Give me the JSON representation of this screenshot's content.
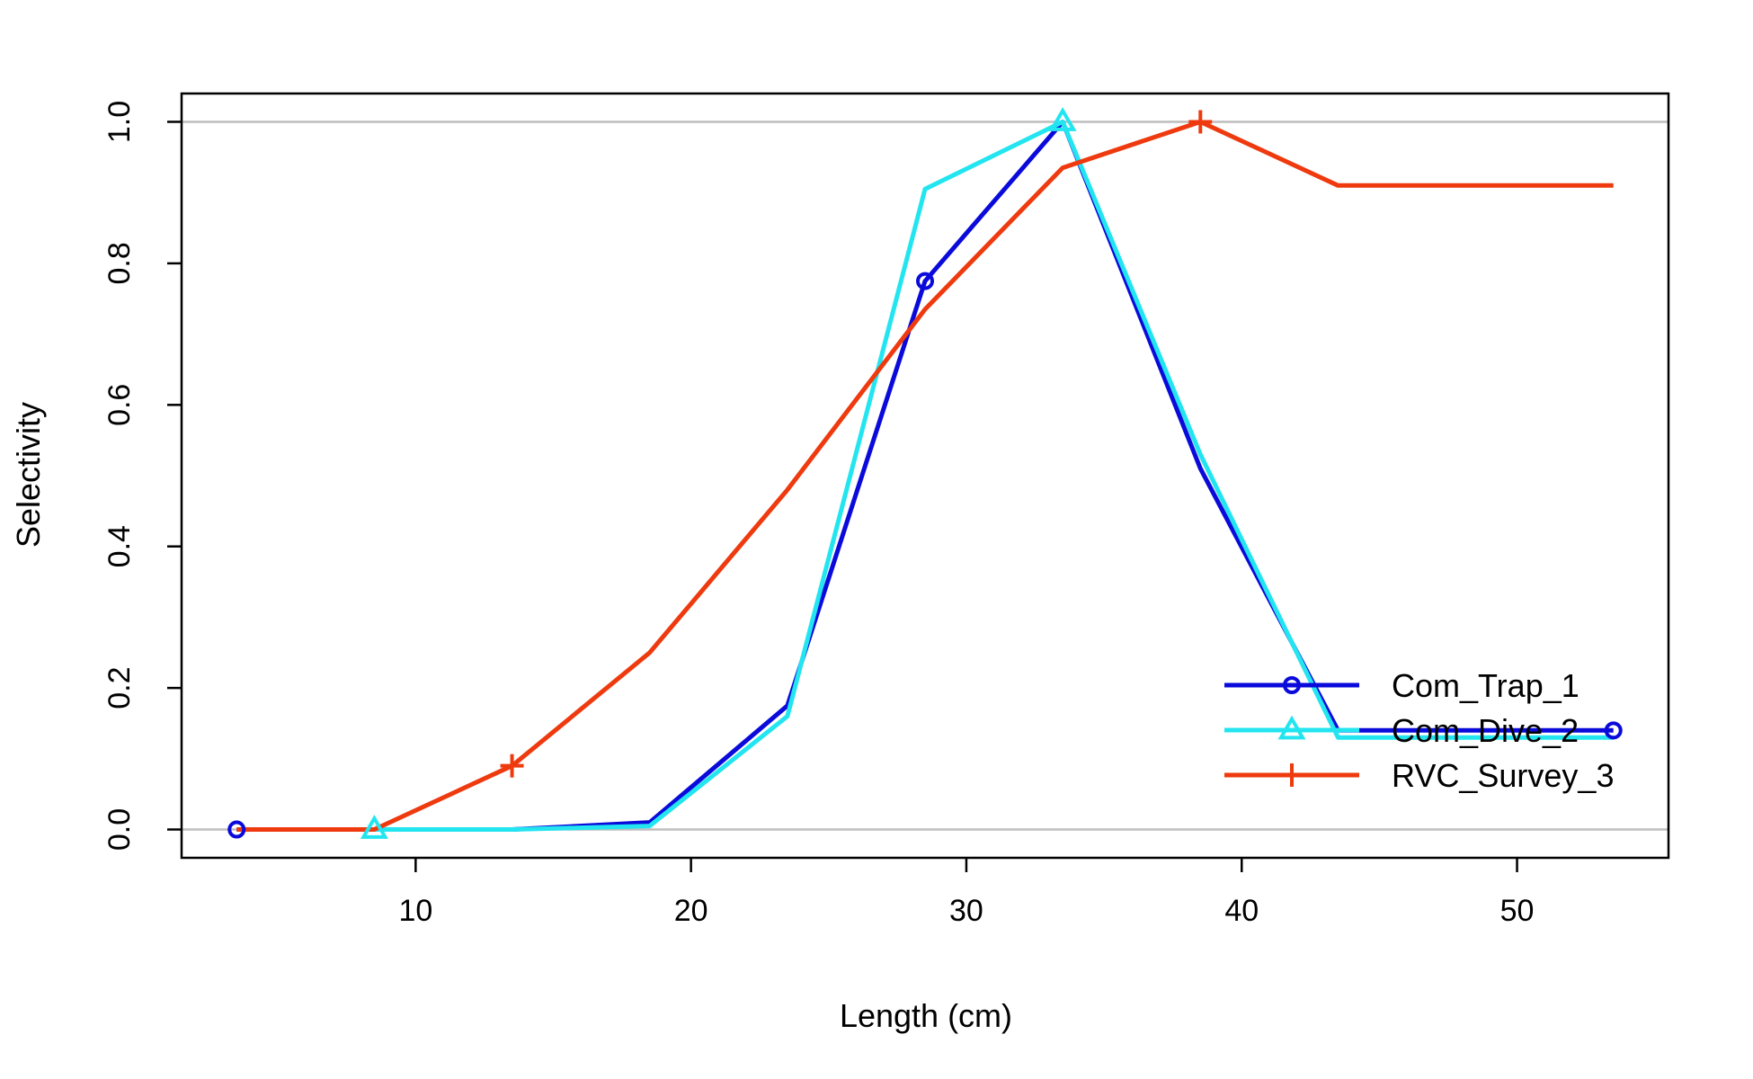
{
  "chart_data": {
    "type": "line",
    "title": "",
    "xlabel": "Length (cm)",
    "ylabel": "Selectivity",
    "xlim": [
      1.5,
      55.5
    ],
    "ylim": [
      -0.04,
      1.04
    ],
    "xticks": [
      10,
      20,
      30,
      40,
      50
    ],
    "yticks": [
      0.0,
      0.2,
      0.4,
      0.6,
      0.8,
      1.0
    ],
    "ytick_labels": [
      "0.0",
      "0.2",
      "0.4",
      "0.6",
      "0.8",
      "1.0"
    ],
    "reference_lines": [
      0,
      1
    ],
    "legend_position": "bottom-right",
    "x": [
      3.5,
      8.5,
      13.5,
      18.5,
      23.5,
      28.5,
      33.5,
      38.5,
      43.5,
      48.5,
      53.5
    ],
    "series": [
      {
        "name": "Com_Trap_1",
        "color": "#0A0ADB",
        "marker": "circle",
        "values": [
          0.0,
          0.0,
          0.0,
          0.01,
          0.175,
          0.775,
          1.0,
          0.51,
          0.14,
          0.14,
          0.14
        ]
      },
      {
        "name": "Com_Dive_2",
        "color": "#22E5F0",
        "marker": "triangle",
        "values": [
          0.0,
          0.0,
          0.0,
          0.005,
          0.16,
          0.905,
          1.0,
          0.53,
          0.13,
          0.13,
          0.13
        ]
      },
      {
        "name": "RVC_Survey_3",
        "color": "#EE3A0E",
        "marker": "plus",
        "values": [
          0.0,
          0.0,
          0.09,
          0.25,
          0.48,
          0.735,
          0.935,
          1.0,
          0.91,
          0.91,
          0.91
        ]
      }
    ],
    "marker_indices": {
      "Com_Trap_1": [
        0,
        5,
        10
      ],
      "Com_Dive_2": [
        1,
        6
      ],
      "RVC_Survey_3": [
        2,
        7
      ]
    }
  }
}
